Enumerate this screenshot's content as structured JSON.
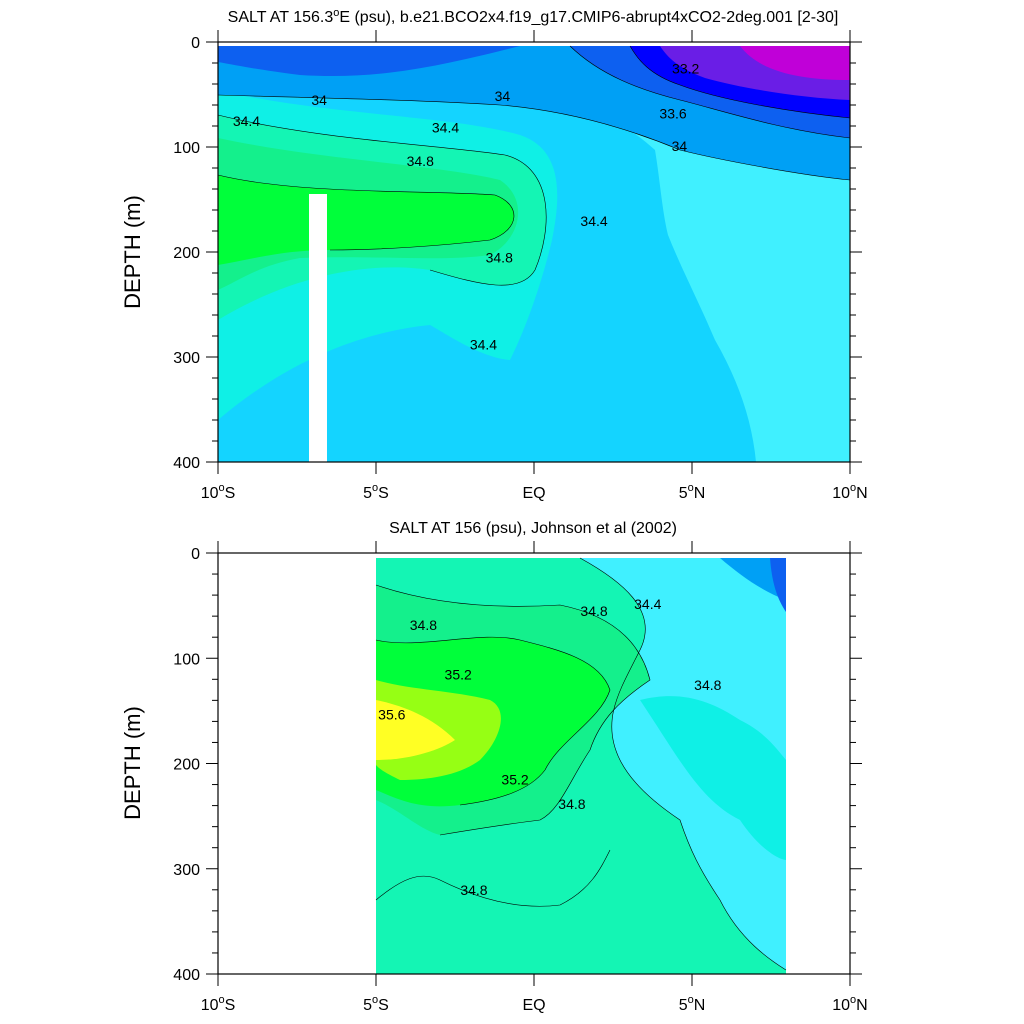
{
  "chart_data": [
    {
      "type": "contour",
      "title_prefix": "SALT AT 156.3",
      "title_sup": "o",
      "title_suffix": "E (psu), b.e21.BCO2x4.f19_g17.CMIP6-abrupt4xCO2-2deg.001 [2-30]",
      "ylabel": "DEPTH (m)",
      "xlabel": "",
      "xlim": [
        -10,
        10
      ],
      "ylim": [
        400,
        0
      ],
      "x_ticks": [
        {
          "value": -10,
          "num": "10",
          "sup": "o",
          "hemi": "S"
        },
        {
          "value": -5,
          "num": "5",
          "sup": "o",
          "hemi": "S"
        },
        {
          "value": 0,
          "num": "EQ",
          "sup": "",
          "hemi": ""
        },
        {
          "value": 5,
          "num": "5",
          "sup": "o",
          "hemi": "N"
        },
        {
          "value": 10,
          "num": "10",
          "sup": "o",
          "hemi": "N"
        }
      ],
      "y_ticks": [
        0,
        100,
        200,
        300,
        400
      ],
      "data_extent_x": [
        -10,
        10
      ],
      "data_extent_y": [
        5,
        400
      ],
      "missing_column": {
        "x": [
          -7.1,
          -6.6
        ],
        "y": [
          145,
          400
        ]
      },
      "contour_labels": [
        {
          "text": "34",
          "x": -6.8,
          "y": 60
        },
        {
          "text": "34",
          "x": -1.0,
          "y": 56
        },
        {
          "text": "34.4",
          "x": -9.1,
          "y": 80
        },
        {
          "text": "34.4",
          "x": -2.8,
          "y": 86
        },
        {
          "text": "34.8",
          "x": -3.6,
          "y": 118
        },
        {
          "text": "34.8",
          "x": -1.1,
          "y": 210
        },
        {
          "text": "34.4",
          "x": 1.9,
          "y": 175
        },
        {
          "text": "34.4",
          "x": -1.6,
          "y": 293
        },
        {
          "text": "33.2",
          "x": 4.8,
          "y": 30
        },
        {
          "text": "33.6",
          "x": 4.4,
          "y": 73
        },
        {
          "text": "34",
          "x": 4.6,
          "y": 104
        }
      ]
    },
    {
      "type": "contour",
      "title_prefix": "SALT AT 156 (psu), Johnson et al (2002)",
      "title_sup": "",
      "title_suffix": "",
      "ylabel": "DEPTH (m)",
      "xlabel": "",
      "xlim": [
        -10,
        10
      ],
      "ylim": [
        400,
        0
      ],
      "x_ticks": [
        {
          "value": -10,
          "num": "10",
          "sup": "o",
          "hemi": "S"
        },
        {
          "value": -5,
          "num": "5",
          "sup": "o",
          "hemi": "S"
        },
        {
          "value": 0,
          "num": "EQ",
          "sup": "",
          "hemi": ""
        },
        {
          "value": 5,
          "num": "5",
          "sup": "o",
          "hemi": "N"
        },
        {
          "value": 10,
          "num": "10",
          "sup": "o",
          "hemi": "N"
        }
      ],
      "y_ticks": [
        0,
        100,
        200,
        300,
        400
      ],
      "data_extent_x": [
        -5,
        8
      ],
      "data_extent_y": [
        5,
        400
      ],
      "contour_labels": [
        {
          "text": "34.8",
          "x": -3.5,
          "y": 73
        },
        {
          "text": "35.2",
          "x": -2.4,
          "y": 120
        },
        {
          "text": "35.6",
          "x": -4.5,
          "y": 158
        },
        {
          "text": "35.2",
          "x": -0.6,
          "y": 220
        },
        {
          "text": "34.8",
          "x": 1.9,
          "y": 60
        },
        {
          "text": "34.4",
          "x": 3.6,
          "y": 53
        },
        {
          "text": "34.8",
          "x": 5.5,
          "y": 130
        },
        {
          "text": "34.8",
          "x": 1.2,
          "y": 243
        },
        {
          "text": "34.8",
          "x": -1.9,
          "y": 325
        }
      ]
    }
  ],
  "colors": {
    "s_32_8": "#c000d8",
    "s_33_2": "#6a1ee6",
    "s_33_6": "#0000ff",
    "s_34_0": "#0d60f0",
    "s_34_2": "#00a0f5",
    "s_34_4": "#14d4ff",
    "s_34_6": "#40f0ff",
    "s_34_7": "#0ff0e6",
    "s_34_9": "#14f5b4",
    "s_35_0": "#14f08c",
    "s_35_2": "#00ff3a",
    "s_35_4": "#96ff14",
    "s_35_6": "#ffff24"
  }
}
